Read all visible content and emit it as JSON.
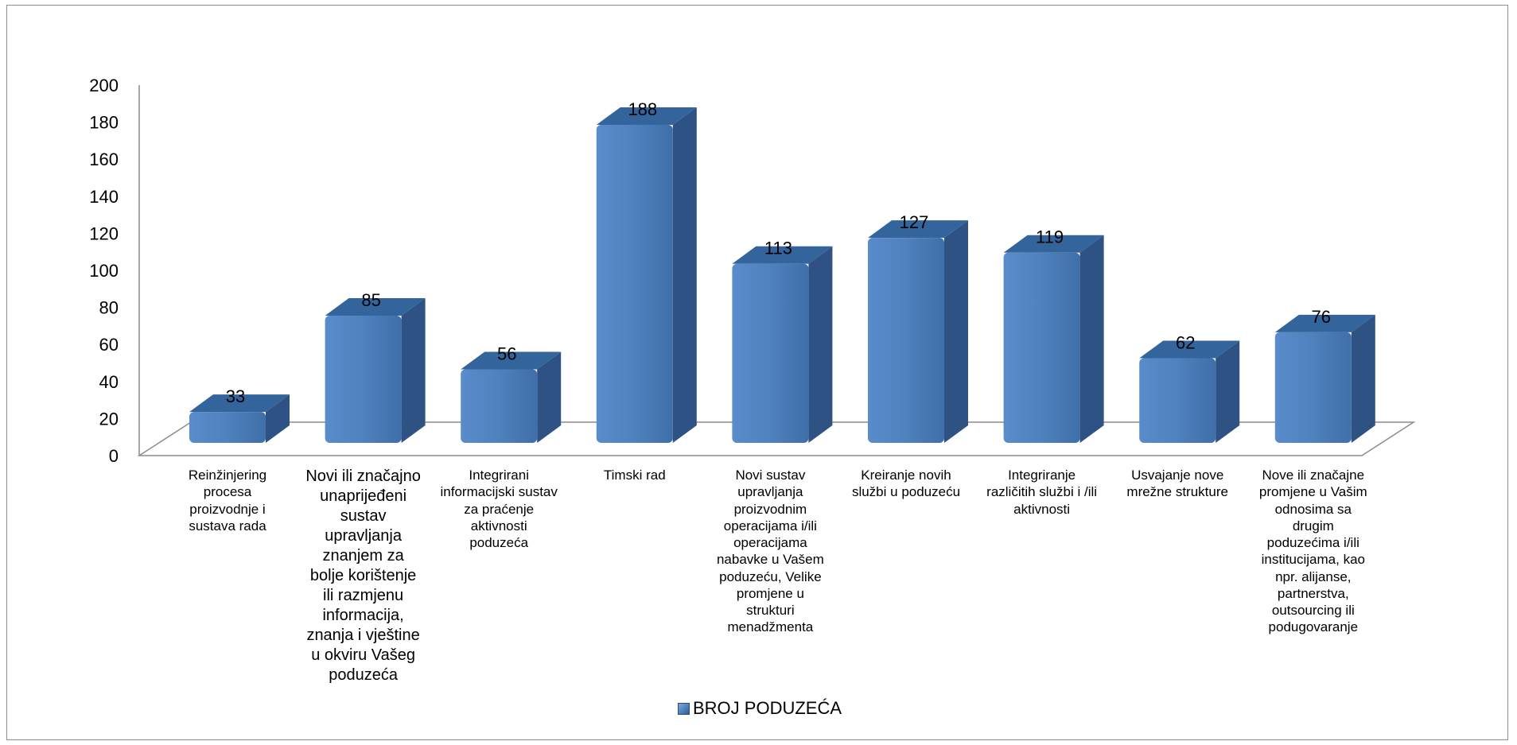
{
  "chart_data": {
    "type": "bar",
    "categories": [
      "Reinžinjering procesa proizvodnje i sustava rada",
      "Novi ili značajno unaprijeđeni sustav upravljanja znanjem za bolje korištenje ili razmjenu informacija, znanja i vještine u okviru Vašeg poduzeća",
      "Integrirani informacijski sustav za praćenje aktivnosti poduzeća",
      "Timski rad",
      "Novi sustav upravljanja proizvodnim operacijama  i/ili operacijama nabavke u Vašem poduzeću, Velike promjene u strukturi menadžmenta",
      "Kreiranje novih službi u poduzeću",
      "Integriranje različitih službi i /ili aktivnosti",
      "Usvajanje nove mrežne strukture",
      "Nove ili značajne promjene u Vašim odnosima sa drugim poduzećima i/ili institucijama, kao npr. alijanse, partnerstva, outsourcing ili podugovaranje"
    ],
    "series": [
      {
        "name": "BROJ PODUZEĆA",
        "values": [
          33,
          85,
          56,
          188,
          113,
          127,
          119,
          62,
          76
        ]
      }
    ],
    "data_labels": [
      "33",
      "85",
      "56",
      "188",
      "113",
      "127",
      "119",
      "62",
      "76"
    ],
    "y_ticks": [
      "0",
      "20",
      "40",
      "60",
      "80",
      "100",
      "120",
      "140",
      "160",
      "180",
      "200"
    ],
    "ylim": [
      0,
      200
    ],
    "grid": false,
    "legend_position": "bottom",
    "style": "3d-column",
    "colors": {
      "front": "#4f81bd",
      "side": "#2f5284",
      "top": "#34649c",
      "axis": "#8c8c8c"
    }
  },
  "legend": {
    "label": "BROJ PODUZEĆA"
  }
}
